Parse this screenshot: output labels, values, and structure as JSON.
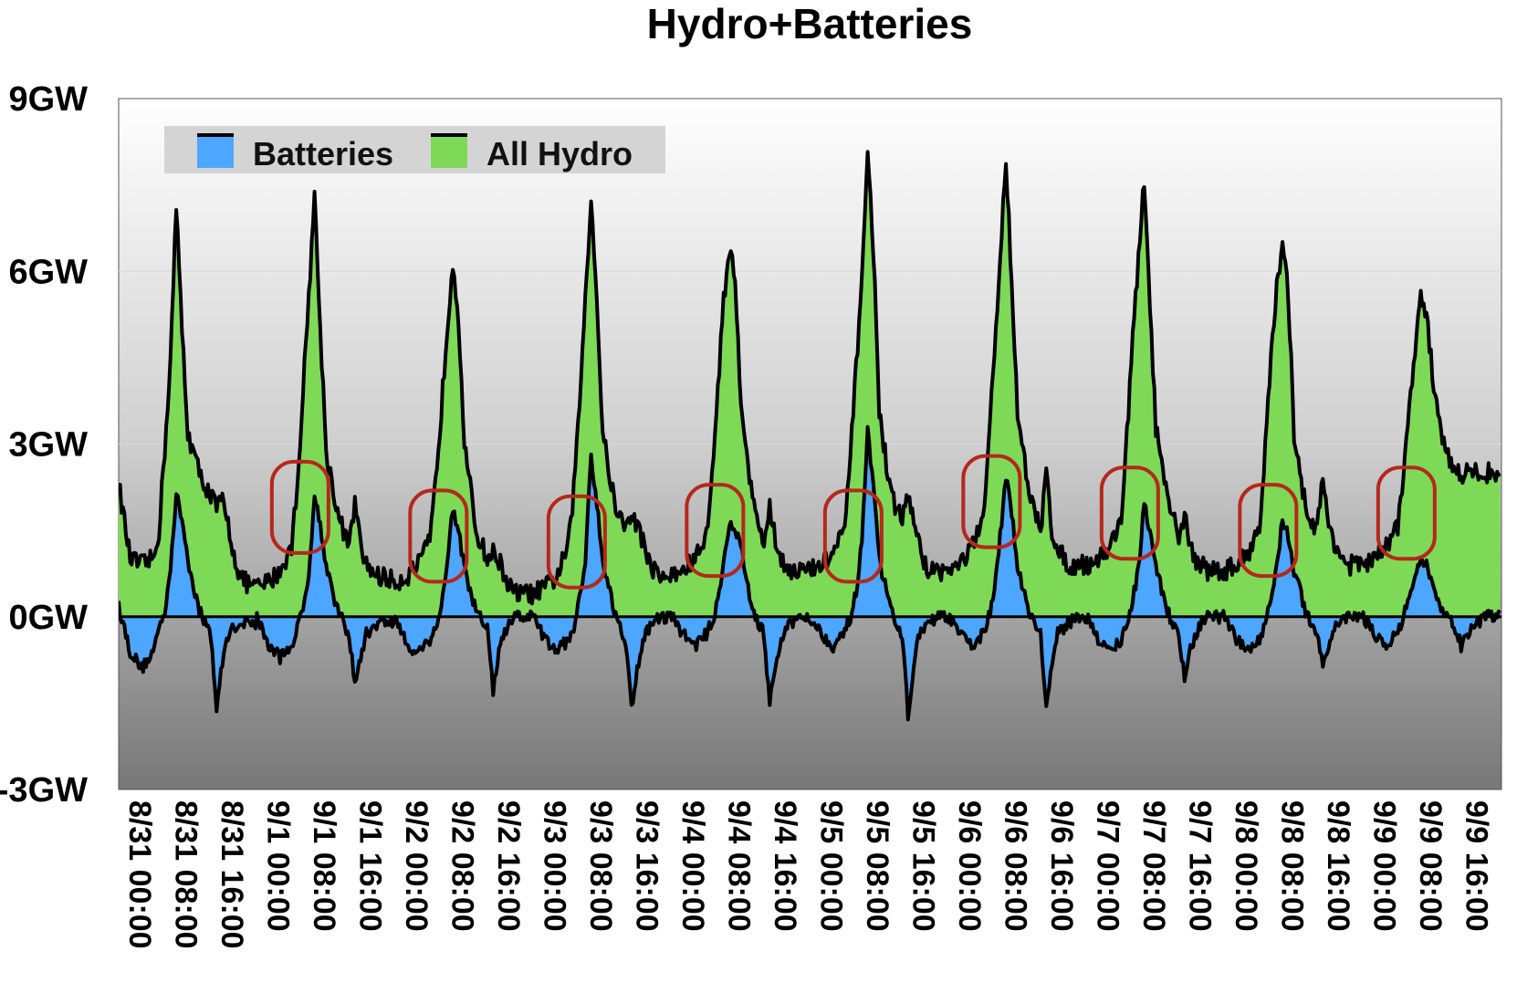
{
  "chart_data": {
    "type": "area",
    "title": "Hydro+Batteries",
    "xlabel": "",
    "ylabel": "",
    "ylim": [
      -3,
      9
    ],
    "y_unit": "GW",
    "y_ticks": [
      {
        "value": -3,
        "label": "-3GW"
      },
      {
        "value": 0,
        "label": "0GW"
      },
      {
        "value": 3,
        "label": "3GW"
      },
      {
        "value": 6,
        "label": "6GW"
      },
      {
        "value": 9,
        "label": "9GW"
      }
    ],
    "x_tick_labels": [
      "8/31 00:00",
      "8/31 08:00",
      "8/31 16:00",
      "9/1 00:00",
      "9/1 08:00",
      "9/1 16:00",
      "9/2 00:00",
      "9/2 08:00",
      "9/2 16:00",
      "9/3 00:00",
      "9/3 08:00",
      "9/3 16:00",
      "9/4 00:00",
      "9/4 08:00",
      "9/4 16:00",
      "9/5 00:00",
      "9/5 08:00",
      "9/5 16:00",
      "9/6 00:00",
      "9/6 08:00",
      "9/6 16:00",
      "9/7 00:00",
      "9/7 08:00",
      "9/7 16:00",
      "9/8 00:00",
      "9/8 08:00",
      "9/8 16:00",
      "9/9 00:00",
      "9/9 08:00",
      "9/9 16:00"
    ],
    "x_hours": [
      0,
      2,
      4,
      6,
      7,
      8,
      9,
      10,
      11,
      12,
      14,
      16,
      17,
      18,
      19,
      20,
      21,
      22,
      24
    ],
    "grid": true,
    "legend_position": "top-left",
    "colors": {
      "batteries": "#4da6ff",
      "hydro": "#7ed957",
      "line": "#000000",
      "annotation": "#b5281c"
    },
    "series": [
      {
        "name": "Batteries",
        "color": "#4da6ff",
        "days": [
          [
            0.2,
            -0.6,
            -0.9,
            -0.6,
            -0.2,
            0.1,
            0.9,
            2.1,
            1.7,
            1.0,
            0.1,
            -0.3,
            -1.6,
            -0.8,
            -0.3,
            -0.2,
            -0.1,
            -0.1,
            -0.1
          ],
          [
            0.0,
            -0.5,
            -0.7,
            -0.5,
            -0.2,
            0.1,
            0.8,
            2.1,
            1.6,
            0.9,
            0.1,
            -0.3,
            -1.2,
            -0.7,
            -0.3,
            -0.2,
            -0.1,
            -0.1,
            -0.1
          ],
          [
            0.0,
            -0.5,
            -0.6,
            -0.4,
            -0.2,
            0.2,
            0.9,
            1.9,
            1.5,
            0.8,
            0.1,
            -0.2,
            -1.3,
            -0.6,
            -0.3,
            -0.1,
            0.0,
            0.0,
            0.0
          ],
          [
            0.0,
            -0.4,
            -0.6,
            -0.4,
            -0.2,
            0.3,
            1.0,
            2.8,
            2.0,
            1.0,
            0.1,
            -0.4,
            -1.6,
            -0.9,
            -0.4,
            -0.2,
            -0.1,
            0.0,
            0.0
          ],
          [
            0.0,
            -0.3,
            -0.5,
            -0.3,
            -0.1,
            0.3,
            1.0,
            1.6,
            1.5,
            1.2,
            0.1,
            -0.3,
            -1.5,
            -0.9,
            -0.4,
            -0.2,
            -0.1,
            0.0,
            0.0
          ],
          [
            0.0,
            -0.3,
            -0.5,
            -0.3,
            0.0,
            0.4,
            1.3,
            3.2,
            2.2,
            1.0,
            0.1,
            -0.3,
            -1.7,
            -0.8,
            -0.3,
            -0.2,
            -0.1,
            0.0,
            0.0
          ],
          [
            0.0,
            -0.3,
            -0.5,
            -0.3,
            0.0,
            0.4,
            1.4,
            2.4,
            1.8,
            0.9,
            0.1,
            -0.3,
            -1.6,
            -0.8,
            -0.3,
            -0.2,
            -0.1,
            0.0,
            0.0
          ],
          [
            0.0,
            -0.4,
            -0.6,
            -0.4,
            -0.1,
            0.3,
            0.8,
            2.0,
            1.5,
            0.9,
            0.1,
            -0.3,
            -1.1,
            -0.6,
            -0.3,
            -0.1,
            0.0,
            0.0,
            0.0
          ],
          [
            0.0,
            -0.4,
            -0.6,
            -0.4,
            -0.1,
            0.3,
            0.9,
            1.7,
            1.4,
            0.8,
            0.1,
            -0.3,
            -0.8,
            -0.5,
            -0.2,
            -0.1,
            0.0,
            0.0,
            0.0
          ],
          [
            0.0,
            -0.3,
            -0.5,
            -0.3,
            0.0,
            0.3,
            0.6,
            1.0,
            0.9,
            0.5,
            0.1,
            -0.2,
            -0.5,
            -0.3,
            -0.2,
            -0.1,
            0.0,
            0.0,
            0.0
          ]
        ]
      },
      {
        "name": "All Hydro",
        "color": "#7ed957",
        "days": [
          [
            2.3,
            1.0,
            0.9,
            1.0,
            1.5,
            2.9,
            4.5,
            7.1,
            5.0,
            3.2,
            2.5,
            2.1,
            1.9,
            2.0,
            1.6,
            1.1,
            0.7,
            0.6,
            0.5
          ],
          [
            0.5,
            0.6,
            0.8,
            1.2,
            2.3,
            3.9,
            5.6,
            7.3,
            5.0,
            2.9,
            1.8,
            1.2,
            2.0,
            1.2,
            0.9,
            0.8,
            0.7,
            0.7,
            0.6
          ],
          [
            0.6,
            0.7,
            0.9,
            1.3,
            2.3,
            3.6,
            5.0,
            6.2,
            5.2,
            3.0,
            1.5,
            1.0,
            1.1,
            1.0,
            0.7,
            0.5,
            0.4,
            0.4,
            0.4
          ],
          [
            0.4,
            0.5,
            0.7,
            1.2,
            2.2,
            3.7,
            5.6,
            7.3,
            5.5,
            3.2,
            2.0,
            1.5,
            1.8,
            1.6,
            1.3,
            1.0,
            0.8,
            0.7,
            0.7
          ],
          [
            0.7,
            0.8,
            1.0,
            1.4,
            2.4,
            4.0,
            5.5,
            6.4,
            5.8,
            3.8,
            2.0,
            1.3,
            1.9,
            1.3,
            1.0,
            0.9,
            0.8,
            0.8,
            0.8
          ],
          [
            0.8,
            0.9,
            1.1,
            1.5,
            2.8,
            4.3,
            6.0,
            8.0,
            6.4,
            3.6,
            2.1,
            1.7,
            2.1,
            1.7,
            1.2,
            0.9,
            0.8,
            0.8,
            0.8
          ],
          [
            0.8,
            0.9,
            1.2,
            1.6,
            3.0,
            4.6,
            6.2,
            8.0,
            5.8,
            3.6,
            2.1,
            1.5,
            2.5,
            1.5,
            1.2,
            1.0,
            0.9,
            0.9,
            0.9
          ],
          [
            0.9,
            1.0,
            1.2,
            1.7,
            3.2,
            4.8,
            6.2,
            7.6,
            5.4,
            3.3,
            2.0,
            1.4,
            1.8,
            1.2,
            1.0,
            0.9,
            0.8,
            0.8,
            0.8
          ],
          [
            0.8,
            0.9,
            1.1,
            1.6,
            2.9,
            4.5,
            5.7,
            6.4,
            5.6,
            3.2,
            1.9,
            1.5,
            2.4,
            1.6,
            1.3,
            1.1,
            0.9,
            0.9,
            0.9
          ],
          [
            0.9,
            1.0,
            1.2,
            1.6,
            2.5,
            3.6,
            4.6,
            5.5,
            5.3,
            4.2,
            3.0,
            2.5,
            2.5,
            2.5,
            2.5,
            2.5,
            2.5,
            2.5,
            2.5
          ]
        ]
      }
    ],
    "legend": {
      "batteries_label": "Batteries",
      "hydro_label": "All Hydro"
    },
    "annotations": [
      {
        "type": "highlight-circle",
        "day": 1,
        "hour": 7.5,
        "gw": 1.9
      },
      {
        "type": "highlight-circle",
        "day": 2,
        "hour": 7.5,
        "gw": 1.4
      },
      {
        "type": "highlight-circle",
        "day": 3,
        "hour": 7.5,
        "gw": 1.3
      },
      {
        "type": "highlight-circle",
        "day": 4,
        "hour": 7.5,
        "gw": 1.5
      },
      {
        "type": "highlight-circle",
        "day": 5,
        "hour": 7.5,
        "gw": 1.4
      },
      {
        "type": "highlight-circle",
        "day": 6,
        "hour": 7.5,
        "gw": 2.0
      },
      {
        "type": "highlight-circle",
        "day": 7,
        "hour": 7.5,
        "gw": 1.8
      },
      {
        "type": "highlight-circle",
        "day": 8,
        "hour": 7.5,
        "gw": 1.5
      },
      {
        "type": "highlight-circle",
        "day": 9,
        "hour": 7.5,
        "gw": 1.8
      }
    ]
  }
}
